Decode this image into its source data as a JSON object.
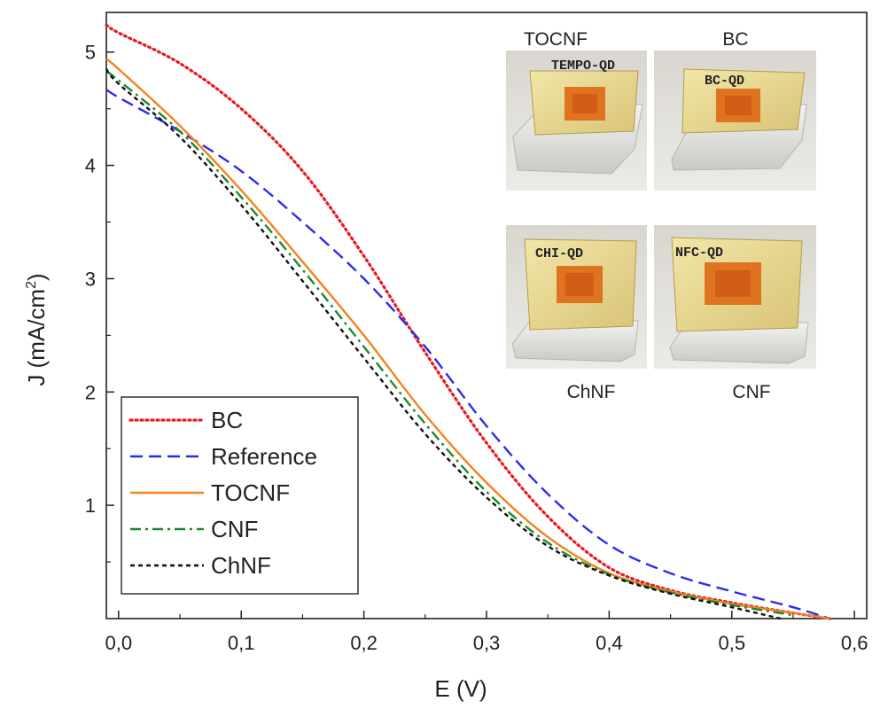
{
  "chart_data": {
    "type": "line",
    "xlabel": "E (V)",
    "ylabel": "J (mA/cm",
    "ylabel_superscript": "2",
    "ylabel_suffix": ")",
    "xlim": [
      -0.01,
      0.61
    ],
    "ylim": [
      0,
      5.35
    ],
    "xticks": [
      0.0,
      0.1,
      0.2,
      0.3,
      0.4,
      0.5,
      0.6
    ],
    "xtick_labels": [
      "0,0",
      "0,1",
      "0,2",
      "0,3",
      "0,4",
      "0,5",
      "0,6"
    ],
    "yticks": [
      1,
      2,
      3,
      4,
      5
    ],
    "ytick_labels": [
      "1",
      "2",
      "3",
      "4",
      "5"
    ],
    "grid": false,
    "legend_position": "bottom-left",
    "series": [
      {
        "name": "BC",
        "color": "#e8191f",
        "dash": "dotted",
        "x": [
          -0.01,
          0.0,
          0.05,
          0.1,
          0.15,
          0.2,
          0.25,
          0.3,
          0.35,
          0.4,
          0.45,
          0.5,
          0.55,
          0.58
        ],
        "y": [
          5.24,
          5.17,
          4.9,
          4.5,
          3.95,
          3.2,
          2.35,
          1.55,
          0.9,
          0.45,
          0.25,
          0.14,
          0.05,
          0.0
        ]
      },
      {
        "name": "Reference",
        "color": "#2b2bf0",
        "dash": "dashed",
        "x": [
          -0.01,
          0.0,
          0.05,
          0.1,
          0.15,
          0.2,
          0.25,
          0.3,
          0.35,
          0.4,
          0.45,
          0.5,
          0.55,
          0.58
        ],
        "y": [
          4.67,
          4.6,
          4.3,
          3.95,
          3.5,
          3.0,
          2.4,
          1.7,
          1.1,
          0.65,
          0.4,
          0.24,
          0.1,
          0.0
        ]
      },
      {
        "name": "TOCNF",
        "color": "#f5821f",
        "dash": "solid",
        "x": [
          -0.01,
          0.0,
          0.05,
          0.1,
          0.15,
          0.2,
          0.25,
          0.3,
          0.35,
          0.4,
          0.45,
          0.5,
          0.55,
          0.58
        ],
        "y": [
          4.94,
          4.85,
          4.35,
          3.78,
          3.15,
          2.5,
          1.8,
          1.2,
          0.72,
          0.4,
          0.24,
          0.13,
          0.05,
          0.0
        ]
      },
      {
        "name": "CNF",
        "color": "#1e8a2e",
        "dash": "dashdot",
        "x": [
          -0.01,
          0.0,
          0.05,
          0.1,
          0.15,
          0.2,
          0.25,
          0.3,
          0.35,
          0.4,
          0.45,
          0.5,
          0.55
        ],
        "y": [
          4.83,
          4.75,
          4.3,
          3.72,
          3.08,
          2.4,
          1.72,
          1.12,
          0.67,
          0.39,
          0.23,
          0.12,
          0.03
        ]
      },
      {
        "name": "ChNF",
        "color": "#111111",
        "dash": "shortdash",
        "x": [
          -0.01,
          0.0,
          0.05,
          0.1,
          0.15,
          0.2,
          0.25,
          0.3,
          0.35,
          0.4,
          0.45,
          0.5,
          0.54
        ],
        "y": [
          4.85,
          4.72,
          4.25,
          3.65,
          2.98,
          2.3,
          1.63,
          1.07,
          0.64,
          0.38,
          0.22,
          0.1,
          0.0
        ]
      }
    ]
  },
  "inset": {
    "photos": [
      {
        "caption": "TOCNF",
        "sample_text": "TEMPO-QD"
      },
      {
        "caption": "BC",
        "sample_text": "BC-QD"
      },
      {
        "caption": "ChNF",
        "sample_text": "CHI-QD"
      },
      {
        "caption": "CNF",
        "sample_text": "NFC-QD"
      }
    ]
  }
}
